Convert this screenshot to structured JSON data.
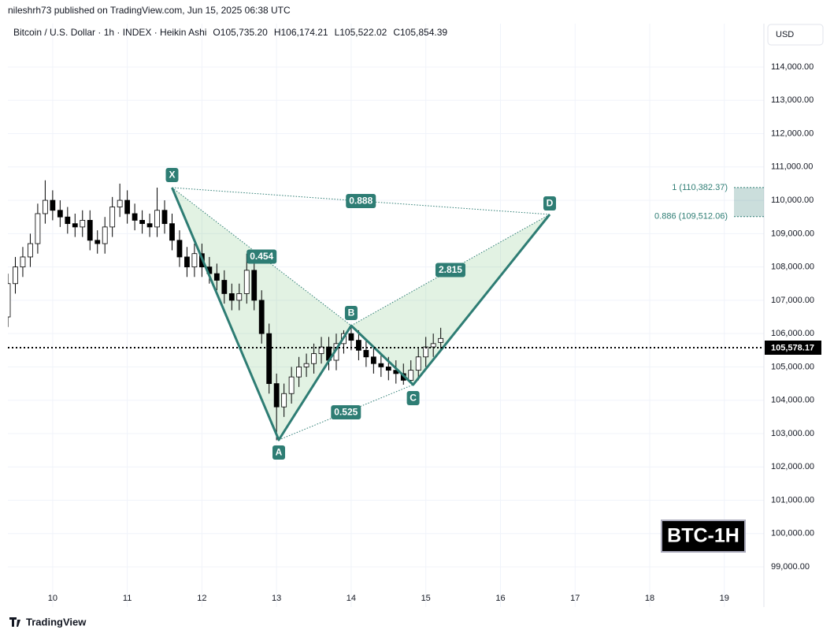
{
  "header": {
    "published": "nileshrh73 published on TradingView.com, Jun 15, 2025 06:38 UTC",
    "instrument": "Bitcoin / U.S. Dollar · 1h · INDEX · Heikin Ashi",
    "ohlc": [
      {
        "key": "O",
        "text": "105,735.20"
      },
      {
        "key": "H",
        "text": "106,174.21"
      },
      {
        "key": "L",
        "text": "105,522.02"
      },
      {
        "key": "C",
        "text": "105,854.39"
      }
    ],
    "currency": "USD",
    "badge": "BTC-1H",
    "brand": "TradingView"
  },
  "chart_data": {
    "type": "candlestick",
    "xlim": [
      9.4,
      19.53
    ],
    "xticks": [
      10,
      11,
      12,
      13,
      14,
      15,
      16,
      17,
      18,
      19
    ],
    "ylim": [
      98268,
      115301
    ],
    "yticks": [
      {
        "value": 99000,
        "label": "99,000.00"
      },
      {
        "value": 100000,
        "label": "100,000.00"
      },
      {
        "value": 101000,
        "label": "101,000.00"
      },
      {
        "value": 102000,
        "label": "102,000.00"
      },
      {
        "value": 103000,
        "label": "103,000.00"
      },
      {
        "value": 104000,
        "label": "104,000.00"
      },
      {
        "value": 105000,
        "label": "105,000.00"
      },
      {
        "value": 106000,
        "label": "106,000.00"
      },
      {
        "value": 107000,
        "label": "107,000.00"
      },
      {
        "value": 108000,
        "label": "108,000.00"
      },
      {
        "value": 109000,
        "label": "109,000.00"
      },
      {
        "value": 110000,
        "label": "110,000.00"
      },
      {
        "value": 111000,
        "label": "111,000.00"
      },
      {
        "value": 112000,
        "label": "112,000.00"
      },
      {
        "value": 113000,
        "label": "113,000.00"
      },
      {
        "value": 114000,
        "label": "114,000.00"
      }
    ],
    "grid": true,
    "up_color": "#ffffff",
    "down_color": "#000000",
    "x": [
      9.4,
      9.5,
      9.6,
      9.7,
      9.8,
      9.9,
      10.0,
      10.1,
      10.2,
      10.3,
      10.4,
      10.5,
      10.6,
      10.7,
      10.8,
      10.9,
      11.0,
      11.1,
      11.2,
      11.3,
      11.4,
      11.5,
      11.6,
      11.7,
      11.8,
      11.9,
      12.0,
      12.1,
      12.2,
      12.3,
      12.4,
      12.5,
      12.6,
      12.7,
      12.8,
      12.9,
      13.0,
      13.1,
      13.2,
      13.3,
      13.4,
      13.5,
      13.6,
      13.7,
      13.8,
      13.9,
      14.0,
      14.1,
      14.2,
      14.3,
      14.4,
      14.5,
      14.6,
      14.7,
      14.8,
      14.9,
      15.0,
      15.1,
      15.2
    ],
    "open": [
      106500,
      107500,
      108000,
      108300,
      108700,
      109600,
      110000,
      109700,
      109500,
      109300,
      109200,
      109400,
      108800,
      108700,
      109200,
      109800,
      110000,
      109600,
      109400,
      109300,
      109200,
      109700,
      109300,
      108800,
      108300,
      108000,
      108400,
      108000,
      107800,
      107600,
      107200,
      107000,
      107200,
      107900,
      107000,
      106000,
      104500,
      103800,
      104200,
      104700,
      105000,
      105100,
      105400,
      105600,
      105200,
      105700,
      106000,
      105800,
      105500,
      105300,
      105100,
      105000,
      104900,
      104800,
      104600,
      104900,
      105300,
      105600,
      105735.2
    ],
    "high": [
      107800,
      108300,
      108600,
      109000,
      109900,
      110600,
      110300,
      110000,
      109800,
      109600,
      109700,
      109700,
      109100,
      109500,
      110100,
      110500,
      110300,
      109900,
      109700,
      109600,
      110380,
      110000,
      109600,
      109100,
      108600,
      108700,
      108700,
      108300,
      108100,
      107900,
      107500,
      107500,
      108400,
      108200,
      107300,
      106300,
      104800,
      104500,
      105000,
      105300,
      105400,
      105700,
      105900,
      105900,
      106000,
      106100,
      106240,
      106100,
      105800,
      105600,
      105400,
      105300,
      105200,
      105100,
      105200,
      105600,
      105900,
      106000,
      106174.21
    ],
    "low": [
      106200,
      107200,
      107700,
      108000,
      108400,
      109300,
      109400,
      109200,
      109000,
      108900,
      108900,
      108500,
      108400,
      108400,
      108900,
      109500,
      109300,
      109100,
      109000,
      108900,
      108900,
      109000,
      108500,
      108000,
      107700,
      107700,
      107700,
      107500,
      107300,
      106900,
      106700,
      106700,
      106900,
      106700,
      105700,
      104200,
      102800,
      103500,
      103900,
      104400,
      104700,
      104800,
      105100,
      104900,
      104900,
      105400,
      105500,
      105200,
      105000,
      104800,
      104700,
      104600,
      104500,
      104466,
      104500,
      104600,
      105000,
      105300,
      105522.02
    ],
    "close": [
      107500,
      108000,
      108300,
      108700,
      109600,
      110000,
      109700,
      109500,
      109300,
      109200,
      109400,
      108800,
      108700,
      109200,
      109800,
      110000,
      109600,
      109400,
      109300,
      109200,
      109700,
      109300,
      108800,
      108300,
      108000,
      108400,
      108000,
      107800,
      107600,
      107200,
      107000,
      107200,
      107900,
      107000,
      106000,
      104500,
      103800,
      104200,
      104700,
      105000,
      105100,
      105400,
      105600,
      105200,
      105700,
      106000,
      105800,
      105500,
      105300,
      105100,
      105000,
      104900,
      104800,
      104600,
      104900,
      105300,
      105600,
      105700,
      105854.39
    ],
    "last_price": {
      "value": 105578.17,
      "label": "105,578.17"
    },
    "pattern": {
      "color": "#2e7d74",
      "points": [
        {
          "label": "X",
          "x": 11.6,
          "y": 110380
        },
        {
          "label": "A",
          "x": 13.03,
          "y": 102810
        },
        {
          "label": "B",
          "x": 14.0,
          "y": 106240
        },
        {
          "label": "C",
          "x": 14.83,
          "y": 104466
        },
        {
          "label": "D",
          "x": 16.66,
          "y": 109576
        }
      ],
      "ratios": [
        {
          "value": 0.454,
          "from": 0,
          "to": 2
        },
        {
          "value": 0.888,
          "from": 0,
          "to": 4
        },
        {
          "value": 2.815,
          "from": 2,
          "to": 4
        },
        {
          "value": 0.525,
          "from": 1,
          "to": 3
        }
      ]
    },
    "target_zone": [
      {
        "value": 110382.37,
        "label": "1 (110,382.37)"
      },
      {
        "value": 109512.06,
        "label": "0.886 (109,512.06)"
      }
    ]
  }
}
